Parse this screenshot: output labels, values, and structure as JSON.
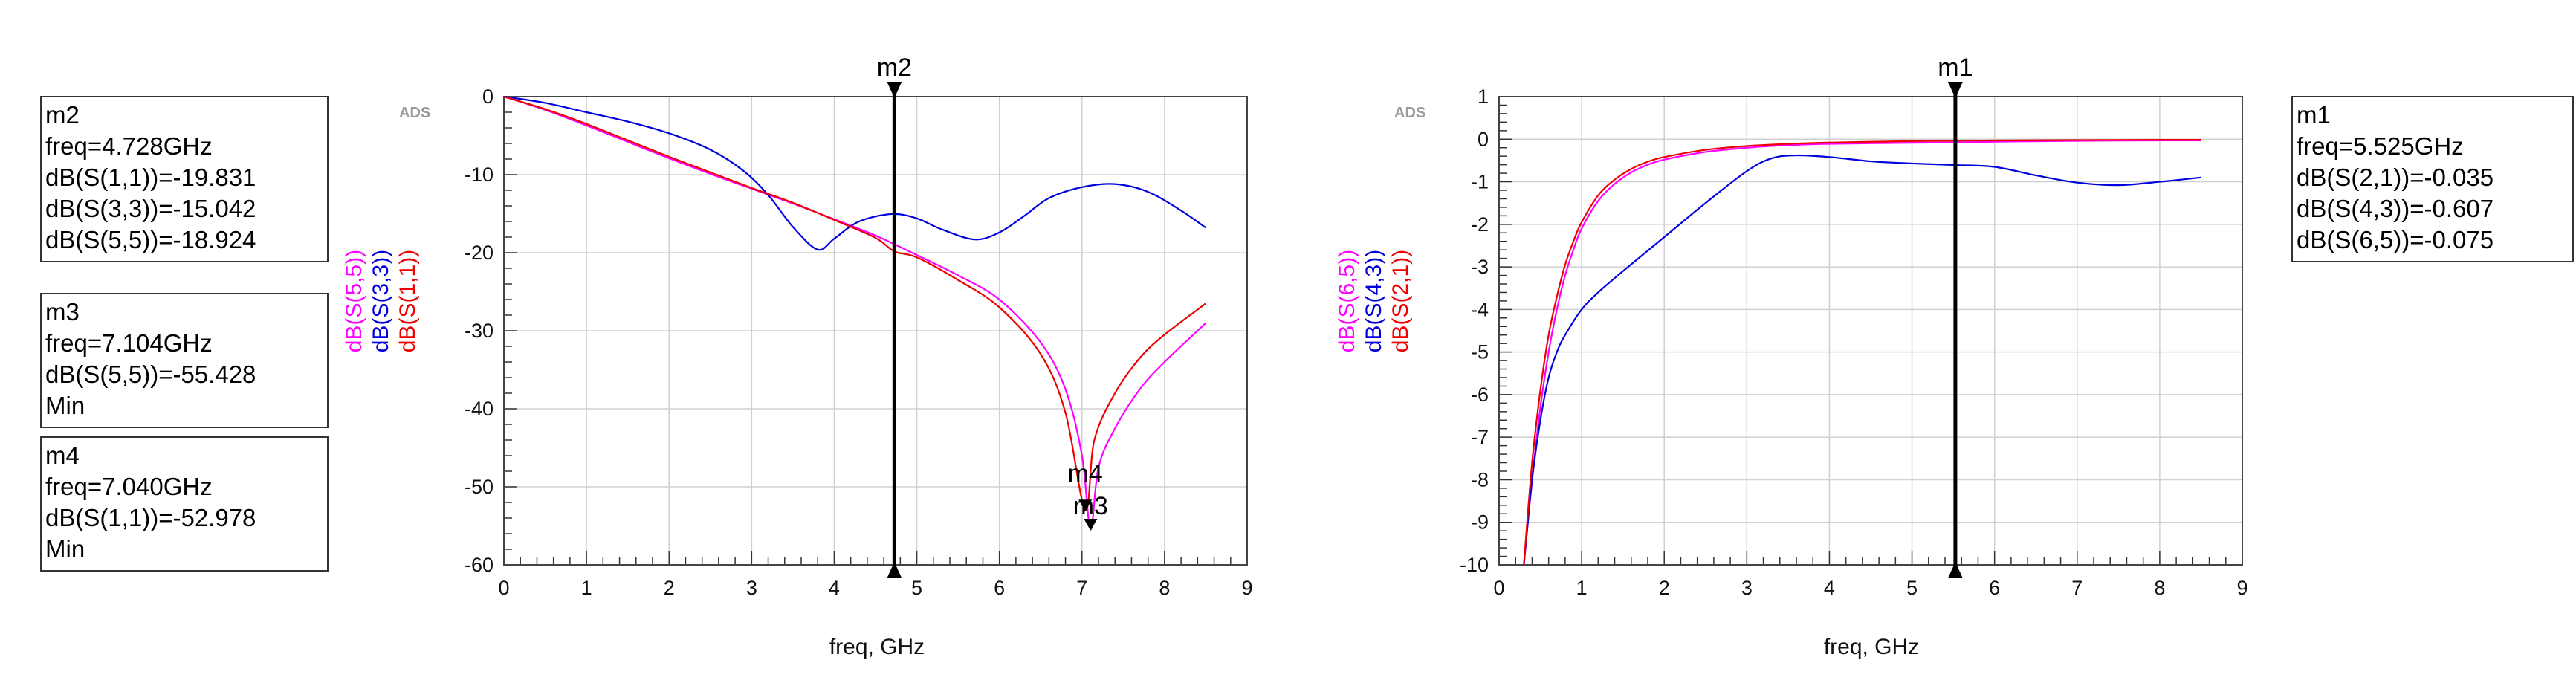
{
  "chart_data": [
    {
      "type": "line",
      "watermark": "ADS",
      "xlabel": "freq, GHz",
      "xlim": [
        0,
        9
      ],
      "ylim": [
        -60,
        0
      ],
      "x_ticks": [
        "0",
        "1",
        "2",
        "3",
        "4",
        "5",
        "6",
        "7",
        "8",
        "9"
      ],
      "y_ticks": [
        "0",
        "-10",
        "-20",
        "-30",
        "-40",
        "-50",
        "-60"
      ],
      "grid": true,
      "legend_placement": "left-vertical",
      "series": [
        {
          "name": "dB(S(5,5))",
          "color": "#ff00ff",
          "x": [
            0,
            0.5,
            1,
            1.5,
            2,
            2.5,
            3,
            3.5,
            4,
            4.5,
            5,
            5.5,
            6,
            6.5,
            6.8,
            7.0,
            7.104,
            7.2,
            7.4,
            7.7,
            8,
            8.5
          ],
          "y": [
            0,
            -1.7,
            -3.7,
            -5.8,
            -7.9,
            -9.9,
            -11.8,
            -13.7,
            -15.7,
            -17.8,
            -20.3,
            -22.9,
            -26.0,
            -31.5,
            -37.5,
            -46.0,
            -55.428,
            -47.5,
            -42.5,
            -37.5,
            -34.0,
            -29.0
          ]
        },
        {
          "name": "dB(S(3,3))",
          "color": "#0000dd",
          "x": [
            0,
            0.5,
            1,
            1.5,
            2,
            2.5,
            2.9,
            3.2,
            3.5,
            3.8,
            4.0,
            4.3,
            4.7,
            5.0,
            5.3,
            5.7,
            6.0,
            6.3,
            6.6,
            7.0,
            7.4,
            7.8,
            8.2,
            8.5
          ],
          "y": [
            0,
            -0.8,
            -2.0,
            -3.2,
            -4.7,
            -6.8,
            -9.5,
            -12.6,
            -16.7,
            -19.6,
            -18.2,
            -16.0,
            -15.042,
            -15.6,
            -17.0,
            -18.3,
            -17.4,
            -15.3,
            -13.0,
            -11.6,
            -11.2,
            -12.2,
            -14.6,
            -16.8
          ]
        },
        {
          "name": "dB(S(1,1))",
          "color": "#ee0000",
          "x": [
            0,
            0.5,
            1,
            1.5,
            2,
            2.5,
            3,
            3.5,
            4,
            4.5,
            4.728,
            5,
            5.5,
            6,
            6.5,
            6.8,
            7.04,
            7.15,
            7.4,
            7.7,
            8,
            8.5
          ],
          "y": [
            0,
            -1.6,
            -3.5,
            -5.6,
            -7.7,
            -9.7,
            -11.7,
            -13.6,
            -15.8,
            -18.1,
            -19.831,
            -20.6,
            -23.5,
            -27.0,
            -33.0,
            -40.5,
            -52.978,
            -44.0,
            -38.0,
            -33.5,
            -30.5,
            -26.5
          ]
        }
      ],
      "markers": [
        {
          "label": "m2",
          "x": 4.728,
          "kind": "vertical"
        },
        {
          "label": "m4",
          "x": 7.04,
          "y": -52.978,
          "kind": "point"
        },
        {
          "label": "m3",
          "x": 7.104,
          "y": -55.428,
          "kind": "point"
        }
      ]
    },
    {
      "type": "line",
      "watermark": "ADS",
      "xlabel": "freq, GHz",
      "xlim": [
        0,
        9
      ],
      "ylim": [
        -10,
        1
      ],
      "x_ticks": [
        "0",
        "1",
        "2",
        "3",
        "4",
        "5",
        "6",
        "7",
        "8",
        "9"
      ],
      "y_ticks": [
        "1",
        "0",
        "-1",
        "-2",
        "-3",
        "-4",
        "-5",
        "-6",
        "-7",
        "-8",
        "-9",
        "-10"
      ],
      "grid": true,
      "legend_placement": "left-vertical",
      "series": [
        {
          "name": "dB(S(6,5))",
          "color": "#ff00ff",
          "x": [
            0.3,
            0.4,
            0.5,
            0.6,
            0.7,
            0.8,
            0.9,
            1.0,
            1.2,
            1.4,
            1.6,
            1.8,
            2.0,
            2.5,
            3.0,
            3.5,
            4.0,
            5.0,
            5.525,
            6.0,
            7.0,
            8.0,
            8.5
          ],
          "y": [
            -10,
            -8.0,
            -6.3,
            -5.0,
            -4.0,
            -3.2,
            -2.6,
            -2.1,
            -1.45,
            -1.05,
            -0.78,
            -0.6,
            -0.48,
            -0.3,
            -0.2,
            -0.14,
            -0.11,
            -0.085,
            -0.075,
            -0.06,
            -0.04,
            -0.03,
            -0.03
          ]
        },
        {
          "name": "dB(S(4,3))",
          "color": "#0000dd",
          "x": [
            0.3,
            0.4,
            0.5,
            0.6,
            0.7,
            0.8,
            1.0,
            1.2,
            1.5,
            2.0,
            2.5,
            3.0,
            3.3,
            3.6,
            4.0,
            4.5,
            5.0,
            5.525,
            6.0,
            6.5,
            7.0,
            7.5,
            8.0,
            8.5
          ],
          "y": [
            -10,
            -8.0,
            -6.6,
            -5.6,
            -5.0,
            -4.6,
            -4.0,
            -3.6,
            -3.1,
            -2.3,
            -1.5,
            -0.75,
            -0.45,
            -0.38,
            -0.42,
            -0.52,
            -0.57,
            -0.607,
            -0.65,
            -0.85,
            -1.02,
            -1.08,
            -1.0,
            -0.9
          ]
        },
        {
          "name": "dB(S(2,1))",
          "color": "#ee0000",
          "x": [
            0.3,
            0.4,
            0.5,
            0.6,
            0.7,
            0.8,
            0.9,
            1.0,
            1.2,
            1.4,
            1.6,
            1.8,
            2.0,
            2.5,
            3.0,
            3.5,
            4.0,
            5.0,
            5.525,
            6.0,
            7.0,
            8.0,
            8.5
          ],
          "y": [
            -10,
            -7.6,
            -5.9,
            -4.6,
            -3.7,
            -2.95,
            -2.4,
            -1.95,
            -1.32,
            -0.95,
            -0.7,
            -0.53,
            -0.42,
            -0.25,
            -0.16,
            -0.11,
            -0.08,
            -0.045,
            -0.035,
            -0.03,
            -0.02,
            -0.015,
            -0.015
          ]
        }
      ],
      "markers": [
        {
          "label": "m1",
          "x": 5.525,
          "kind": "vertical"
        }
      ]
    }
  ],
  "marker_boxes": [
    {
      "lines": [
        "m2",
        "freq=4.728GHz",
        "dB(S(1,1))=-19.831",
        "dB(S(3,3))=-15.042",
        "dB(S(5,5))=-18.924"
      ]
    },
    {
      "lines": [
        "m3",
        "freq=7.104GHz",
        "dB(S(5,5))=-55.428",
        "Min"
      ]
    },
    {
      "lines": [
        "m4",
        "freq=7.040GHz",
        "dB(S(1,1))=-52.978",
        "Min"
      ]
    },
    {
      "lines": [
        "m1",
        "freq=5.525GHz",
        "dB(S(2,1))=-0.035",
        "dB(S(4,3))=-0.607",
        "dB(S(6,5))=-0.075"
      ]
    }
  ]
}
